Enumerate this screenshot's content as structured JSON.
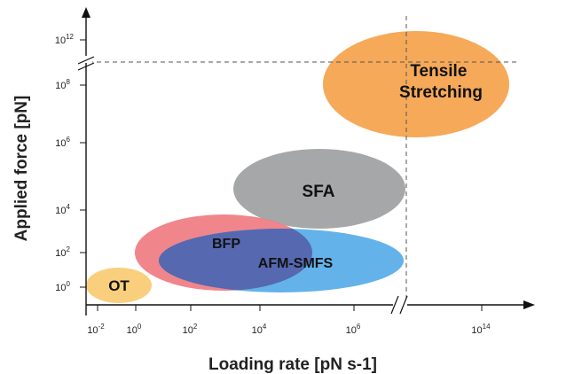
{
  "chart_data": {
    "type": "bubble-regions",
    "xlabel": "Loading rate [pN s-1]",
    "ylabel": "Applied force [pN]",
    "x_scale": "log (broken axis between 10^6 and 10^14)",
    "y_scale": "log (broken axis between 10^8 and 10^12)",
    "x_ticks": [
      {
        "base": "10",
        "exp": "-2",
        "value": 0.01
      },
      {
        "base": "10",
        "exp": "0",
        "value": 1
      },
      {
        "base": "10",
        "exp": "2",
        "value": 100
      },
      {
        "base": "10",
        "exp": "4",
        "value": 10000
      },
      {
        "base": "10",
        "exp": "6",
        "value": 1000000
      },
      {
        "base": "10",
        "exp": "14",
        "value": 100000000000000
      }
    ],
    "y_ticks": [
      {
        "base": "10",
        "exp": "0",
        "value": 1
      },
      {
        "base": "10",
        "exp": "2",
        "value": 100
      },
      {
        "base": "10",
        "exp": "4",
        "value": 10000
      },
      {
        "base": "10",
        "exp": "6",
        "value": 1000000
      },
      {
        "base": "10",
        "exp": "8",
        "value": 100000000
      },
      {
        "base": "10",
        "exp": "12",
        "value": 1000000000000
      }
    ],
    "regions": [
      {
        "label": "Tensile Stretching",
        "label_lines": [
          "Tensile",
          "Stretching"
        ],
        "color": "#f6a44f",
        "label_color": "#111111",
        "log10_loading_rate": [
          5.6,
          14.7
        ],
        "log10_force": [
          6.6,
          9.6
        ]
      },
      {
        "label": "SFA",
        "label_lines": [
          "SFA"
        ],
        "color": "#a0a2a4",
        "label_color": "#111111",
        "log10_loading_rate": [
          3.7,
          6.8
        ],
        "log10_force": [
          3.3,
          5.6
        ]
      },
      {
        "label": "BFP",
        "label_lines": [
          "BFP"
        ],
        "color": "#f07e86",
        "label_color": "#2b63b8",
        "log10_loading_rate": [
          -0.2,
          5.2
        ],
        "log10_force": [
          1.2,
          3.8
        ]
      },
      {
        "label": "AFM-SMFS",
        "label_lines": [
          "AFM-SMFS"
        ],
        "color": "#5baee9",
        "label_color": "#111111",
        "log10_loading_rate": [
          0.9,
          7.0
        ],
        "log10_force": [
          1.0,
          3.3
        ]
      },
      {
        "label": "OT",
        "label_lines": [
          "OT"
        ],
        "color": "#f9cc76",
        "label_color": "#111111",
        "log10_loading_rate": [
          -2.4,
          0.6
        ],
        "log10_force": [
          -0.6,
          1.2
        ]
      }
    ],
    "overlap_color": "#5568b0",
    "reference_lines": [
      "horizontal dashed line at the y-axis break",
      "vertical dashed line at the x-axis break"
    ],
    "grid": false,
    "legend": "none"
  }
}
